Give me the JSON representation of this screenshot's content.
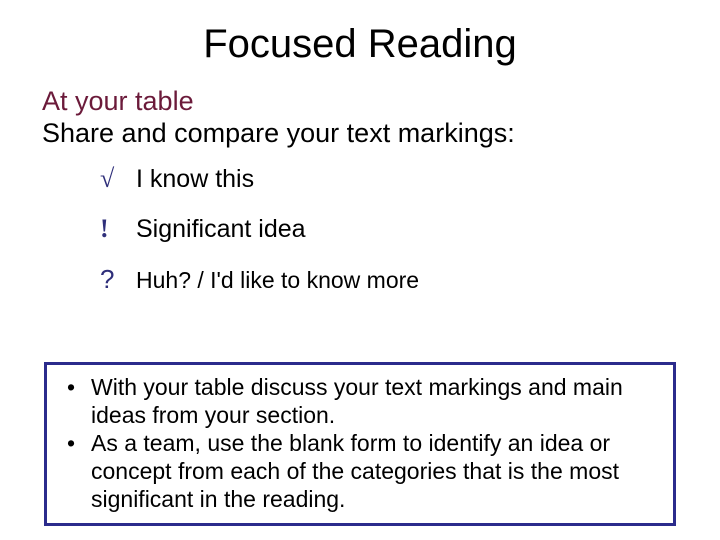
{
  "title": "Focused Reading",
  "subtitle1": "At your table",
  "subtitle2": "Share and compare your text markings:",
  "marks": [
    {
      "symbol": "√",
      "label": "I know this"
    },
    {
      "symbol": "!",
      "label": "Significant idea"
    },
    {
      "symbol": "?",
      "label": "Huh? / I'd like to know more"
    }
  ],
  "bullets": [
    "With your table discuss your text markings and main ideas from your section.",
    "As a team, use the blank form to identify an idea or concept from each of the categories that is the most significant in the reading."
  ],
  "colors": {
    "title": "#000000",
    "subtitle_accent": "#6b1a3a",
    "symbol": "#2f2f7a",
    "box_border": "#2b2b8c",
    "background": "#ffffff"
  }
}
